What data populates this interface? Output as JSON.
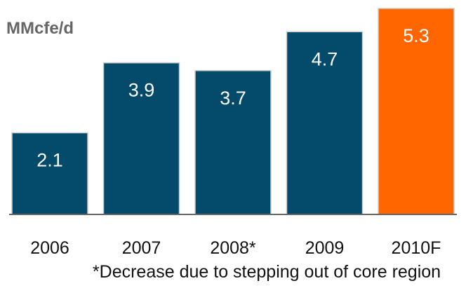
{
  "chart_data": {
    "type": "bar",
    "categories": [
      "2006",
      "2007",
      "2008*",
      "2009",
      "2010F"
    ],
    "values": [
      2.1,
      3.9,
      3.7,
      4.7,
      5.3
    ],
    "data_labels": [
      "2.1",
      "3.9",
      "3.7",
      "4.7",
      "5.3"
    ],
    "unit_label": "MMcfe/d",
    "footnote": "*Decrease due to stepping out of core region",
    "title": "",
    "xlabel": "",
    "ylabel": "",
    "ylim": [
      0,
      5.3
    ],
    "grid": false,
    "legend": "none",
    "colors": {
      "bar": "#034a6b",
      "highlight": "#ff6600",
      "highlight_category": "2010F",
      "baseline": "#666666",
      "unit_label": "#666666",
      "bar_edge": "#cccccc"
    }
  }
}
